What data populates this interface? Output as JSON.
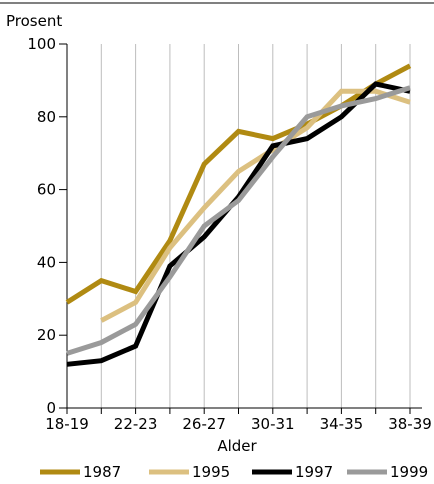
{
  "chart_data": {
    "type": "line",
    "ylabel": "Prosent",
    "xlabel": "Alder",
    "ylim": [
      0,
      100
    ],
    "yticks": [
      0,
      20,
      40,
      60,
      80,
      100
    ],
    "x": [
      "18-19",
      "20-21",
      "22-23",
      "24-25",
      "26-27",
      "28-29",
      "30-31",
      "32-33",
      "34-35",
      "36-37",
      "38-39"
    ],
    "xtick_labels": [
      "18-19",
      "22-23",
      "26-27",
      "30-31",
      "34-35",
      "38-39"
    ],
    "grid": "vertical",
    "legend": "bottom",
    "series": [
      {
        "name": "1987",
        "color": "#b08a12",
        "values": [
          29,
          35,
          32,
          46,
          67,
          76,
          74,
          78,
          83,
          89,
          94
        ]
      },
      {
        "name": "1995",
        "color": "#dcc080",
        "values": [
          null,
          24,
          29,
          44,
          55,
          65,
          71,
          77,
          87,
          87,
          84
        ]
      },
      {
        "name": "1997",
        "color": "#000000",
        "values": [
          12,
          13,
          17,
          39,
          47,
          58,
          72,
          74,
          80,
          89,
          87
        ]
      },
      {
        "name": "1999",
        "color": "#9a9a9a",
        "values": [
          15,
          18,
          23,
          36,
          50,
          57,
          69,
          80,
          83,
          85,
          88
        ]
      }
    ]
  }
}
